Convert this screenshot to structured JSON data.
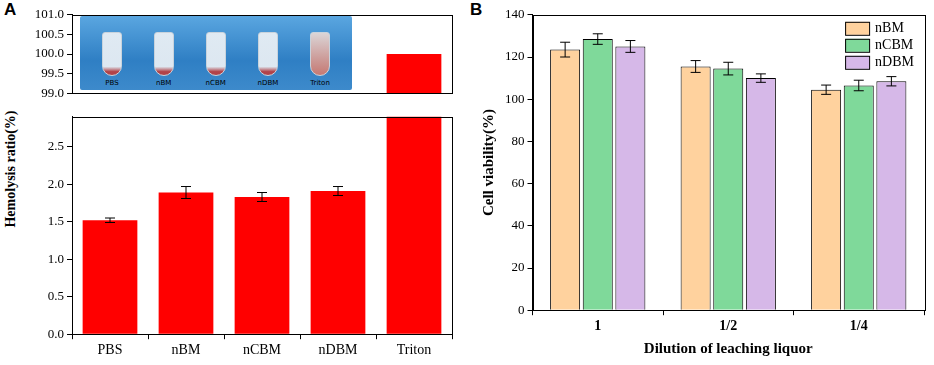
{
  "chart_data": [
    {
      "type": "bar",
      "panel_label": "A",
      "y_label": "Hemolysis ratio(%)",
      "categories": [
        "PBS",
        "nBM",
        "nCBM",
        "nDBM",
        "Triton"
      ],
      "values": [
        1.52,
        1.89,
        1.83,
        1.91,
        100
      ],
      "errors": [
        0.03,
        0.08,
        0.06,
        0.06,
        null
      ],
      "color": "#ff0000",
      "ylim": [
        0,
        101
      ],
      "y_break": [
        2.9,
        99
      ],
      "yticks": [
        {
          "value": 0,
          "label": "0.0"
        },
        {
          "value": 0.5,
          "label": "0.5"
        },
        {
          "value": 1,
          "label": "1.0"
        },
        {
          "value": 1.5,
          "label": "1.5"
        },
        {
          "value": 2,
          "label": "2.0"
        },
        {
          "value": 2.5,
          "label": "2.5"
        },
        {
          "value": 99,
          "label": "99.0"
        },
        {
          "value": 99.5,
          "label": "99.5"
        },
        {
          "value": 100,
          "label": "100.0"
        },
        {
          "value": 100.5,
          "label": "100.5"
        },
        {
          "value": 101,
          "label": "101.0"
        }
      ],
      "grid": false,
      "annotations": [
        "PBS",
        "nBM",
        "nCBM",
        "nDBM",
        "Triton"
      ]
    },
    {
      "type": "bar",
      "panel_label": "B",
      "x_label": "Dilution of leaching liquor",
      "y_label": "Cell viability(%)",
      "categories": [
        "1",
        "1/2",
        "1/4"
      ],
      "series": [
        {
          "name": "nBM",
          "color": "#ffd29e",
          "values": [
            123.5,
            115.5,
            104.5
          ],
          "errors": [
            3.5,
            2.8,
            2.2
          ]
        },
        {
          "name": "nCBM",
          "color": "#7fd99a",
          "values": [
            128.5,
            114.5,
            106.5
          ],
          "errors": [
            2.5,
            3.0,
            2.5
          ]
        },
        {
          "name": "nDBM",
          "color": "#d6b8e8",
          "values": [
            125.0,
            110.0,
            108.5
          ],
          "errors": [
            2.8,
            2.0,
            2.2
          ]
        }
      ],
      "ylim": [
        0,
        140
      ],
      "yticks": [
        0,
        20,
        40,
        60,
        80,
        100,
        120,
        140
      ],
      "grid": false,
      "legend": "upper right"
    }
  ]
}
